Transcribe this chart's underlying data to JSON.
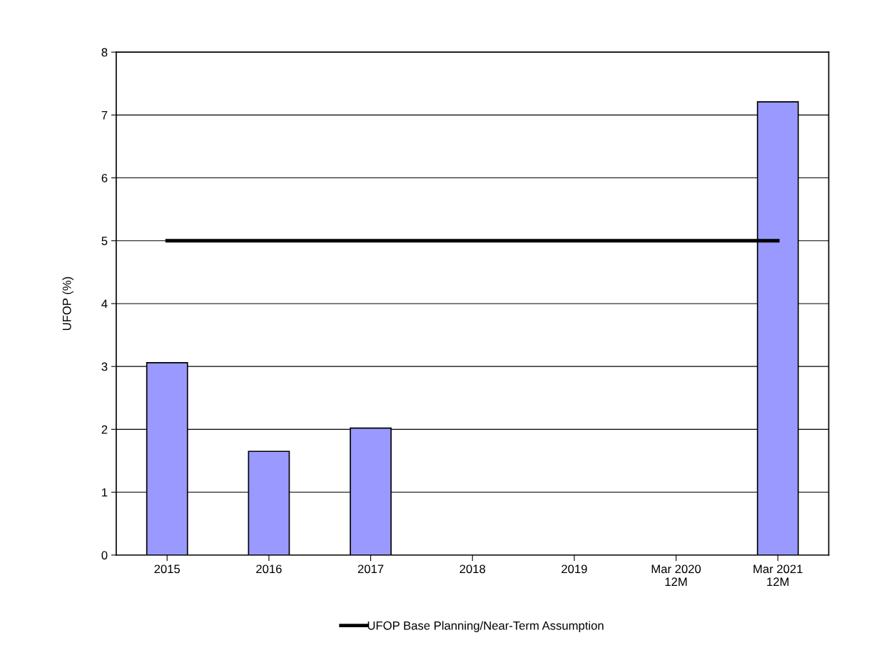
{
  "chart_data": {
    "type": "bar",
    "ylabel": "UFOP (%)",
    "categories": [
      "2015",
      "2016",
      "2017",
      "2018",
      "2019",
      "Mar 2020\n12M",
      "Mar 2021\n12M"
    ],
    "series": [
      {
        "color": "#9999ff",
        "values": [
          3.06,
          1.65,
          2.02,
          null,
          null,
          null,
          7.21
        ]
      },
      {
        "type": "line",
        "name": "UFOP Base Planning/Near-Term Assumption",
        "color": "#000000",
        "values": [
          5,
          5,
          5,
          5,
          5,
          5,
          5
        ]
      }
    ],
    "ylim": [
      0,
      8
    ],
    "yticks": [
      0,
      1,
      2,
      3,
      4,
      5,
      6,
      7,
      8
    ],
    "grid": "y",
    "legend": "bottom",
    "marker": "none",
    "line_style": "solid"
  }
}
